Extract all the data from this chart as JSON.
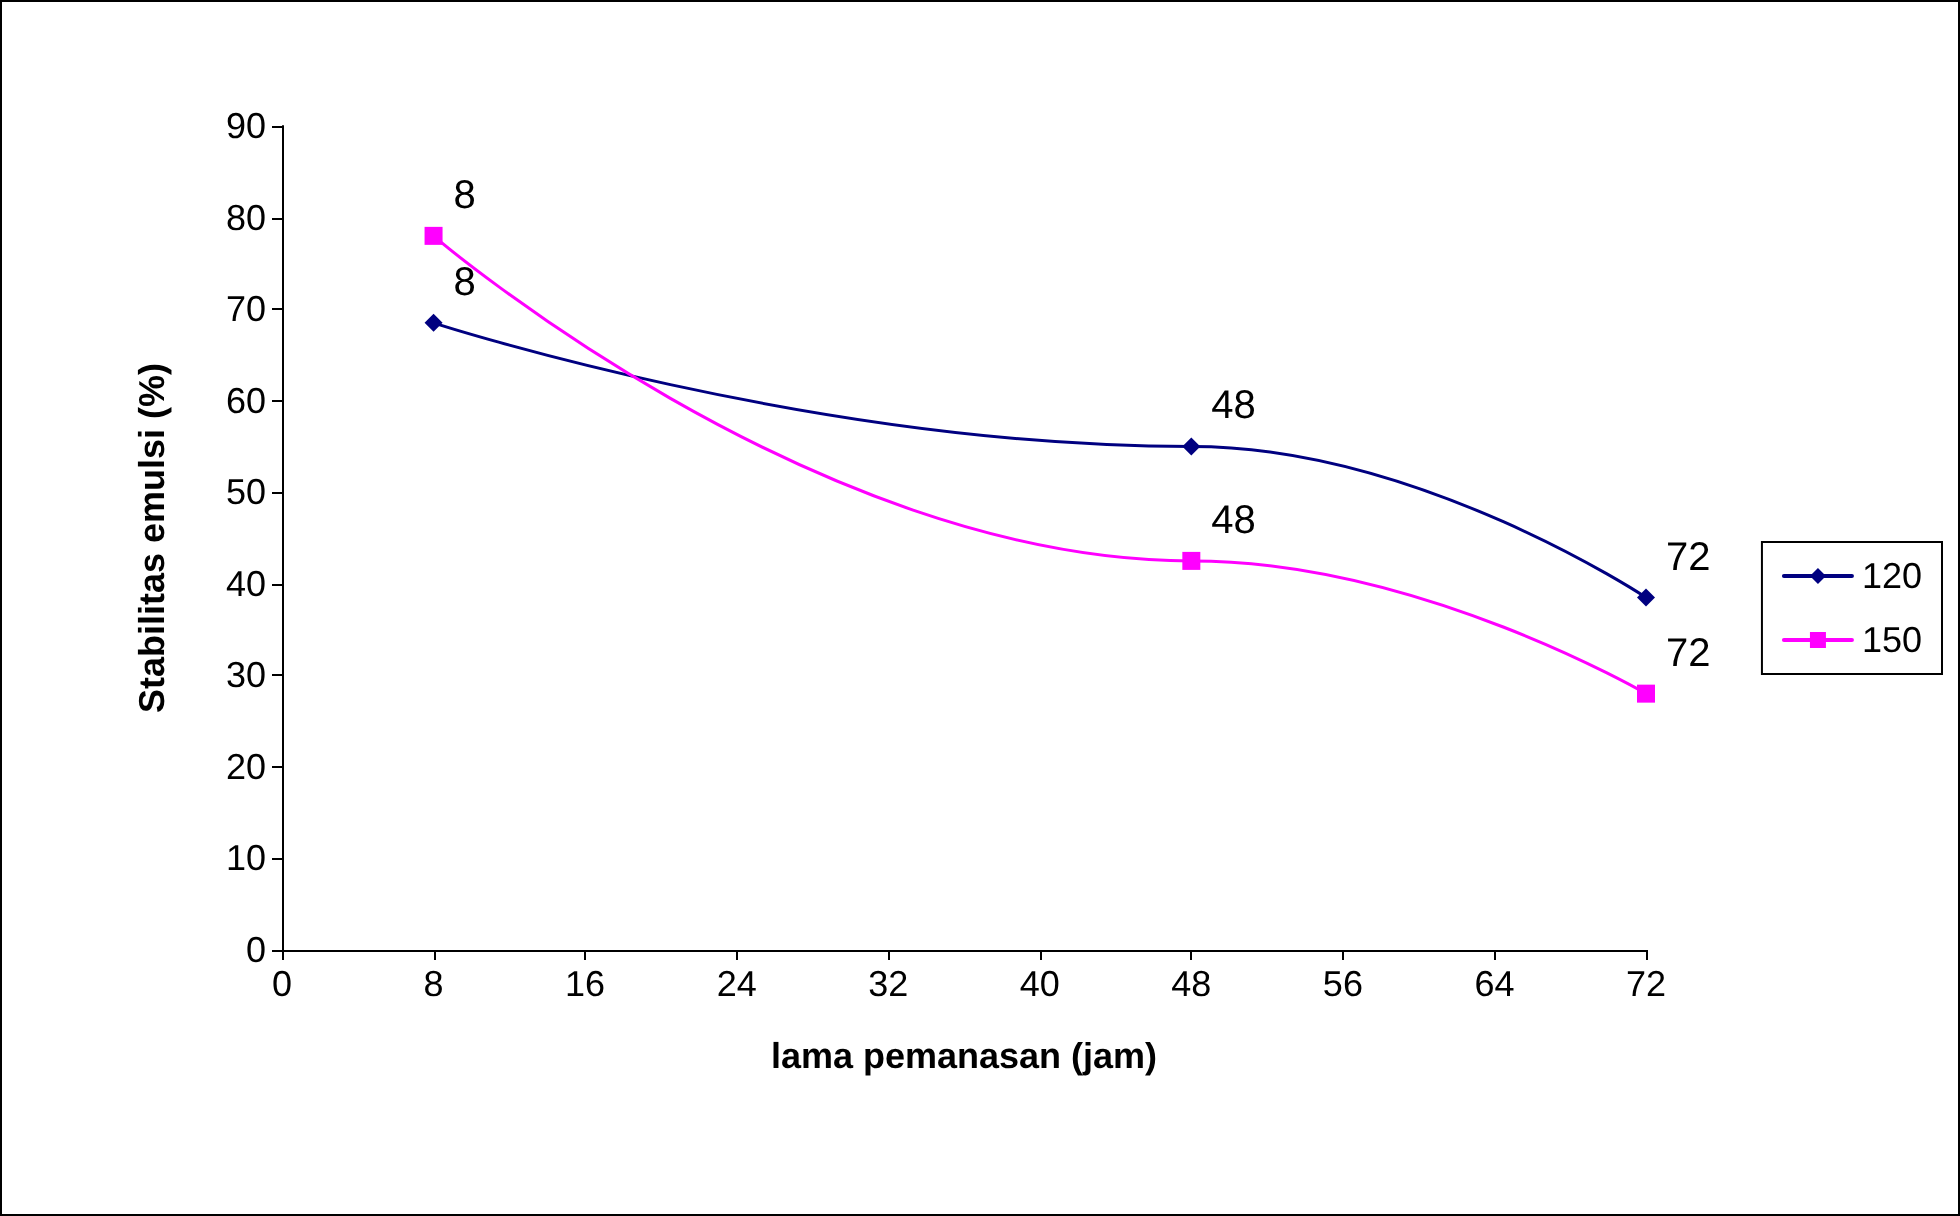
{
  "chart_data": {
    "type": "line",
    "xlabel": "lama pemanasan (jam)",
    "ylabel": "Stabilitas emulsi (%)",
    "x": [
      8,
      48,
      72
    ],
    "series": [
      {
        "name": "120",
        "color": "#000080",
        "marker": "diamond",
        "values": [
          68.5,
          55,
          38.5
        ]
      },
      {
        "name": "150",
        "color": "#ff00ff",
        "marker": "square",
        "values": [
          78,
          42.5,
          28
        ]
      }
    ],
    "annotations": [
      {
        "text": "8",
        "x": 8,
        "y": 68.5
      },
      {
        "text": "48",
        "x": 48,
        "y": 55
      },
      {
        "text": "72",
        "x": 72,
        "y": 38.5
      },
      {
        "text": "8",
        "x": 8,
        "y": 78
      },
      {
        "text": "48",
        "x": 48,
        "y": 42.5
      },
      {
        "text": "72",
        "x": 72,
        "y": 28
      }
    ],
    "xlim": [
      0,
      72
    ],
    "xticks": [
      0,
      8,
      16,
      24,
      32,
      40,
      48,
      56,
      64,
      72
    ],
    "ylim": [
      0,
      90
    ],
    "yticks": [
      0,
      10,
      20,
      30,
      40,
      50,
      60,
      70,
      80,
      90
    ],
    "grid": false,
    "legend": "right",
    "line_style": "solid"
  }
}
